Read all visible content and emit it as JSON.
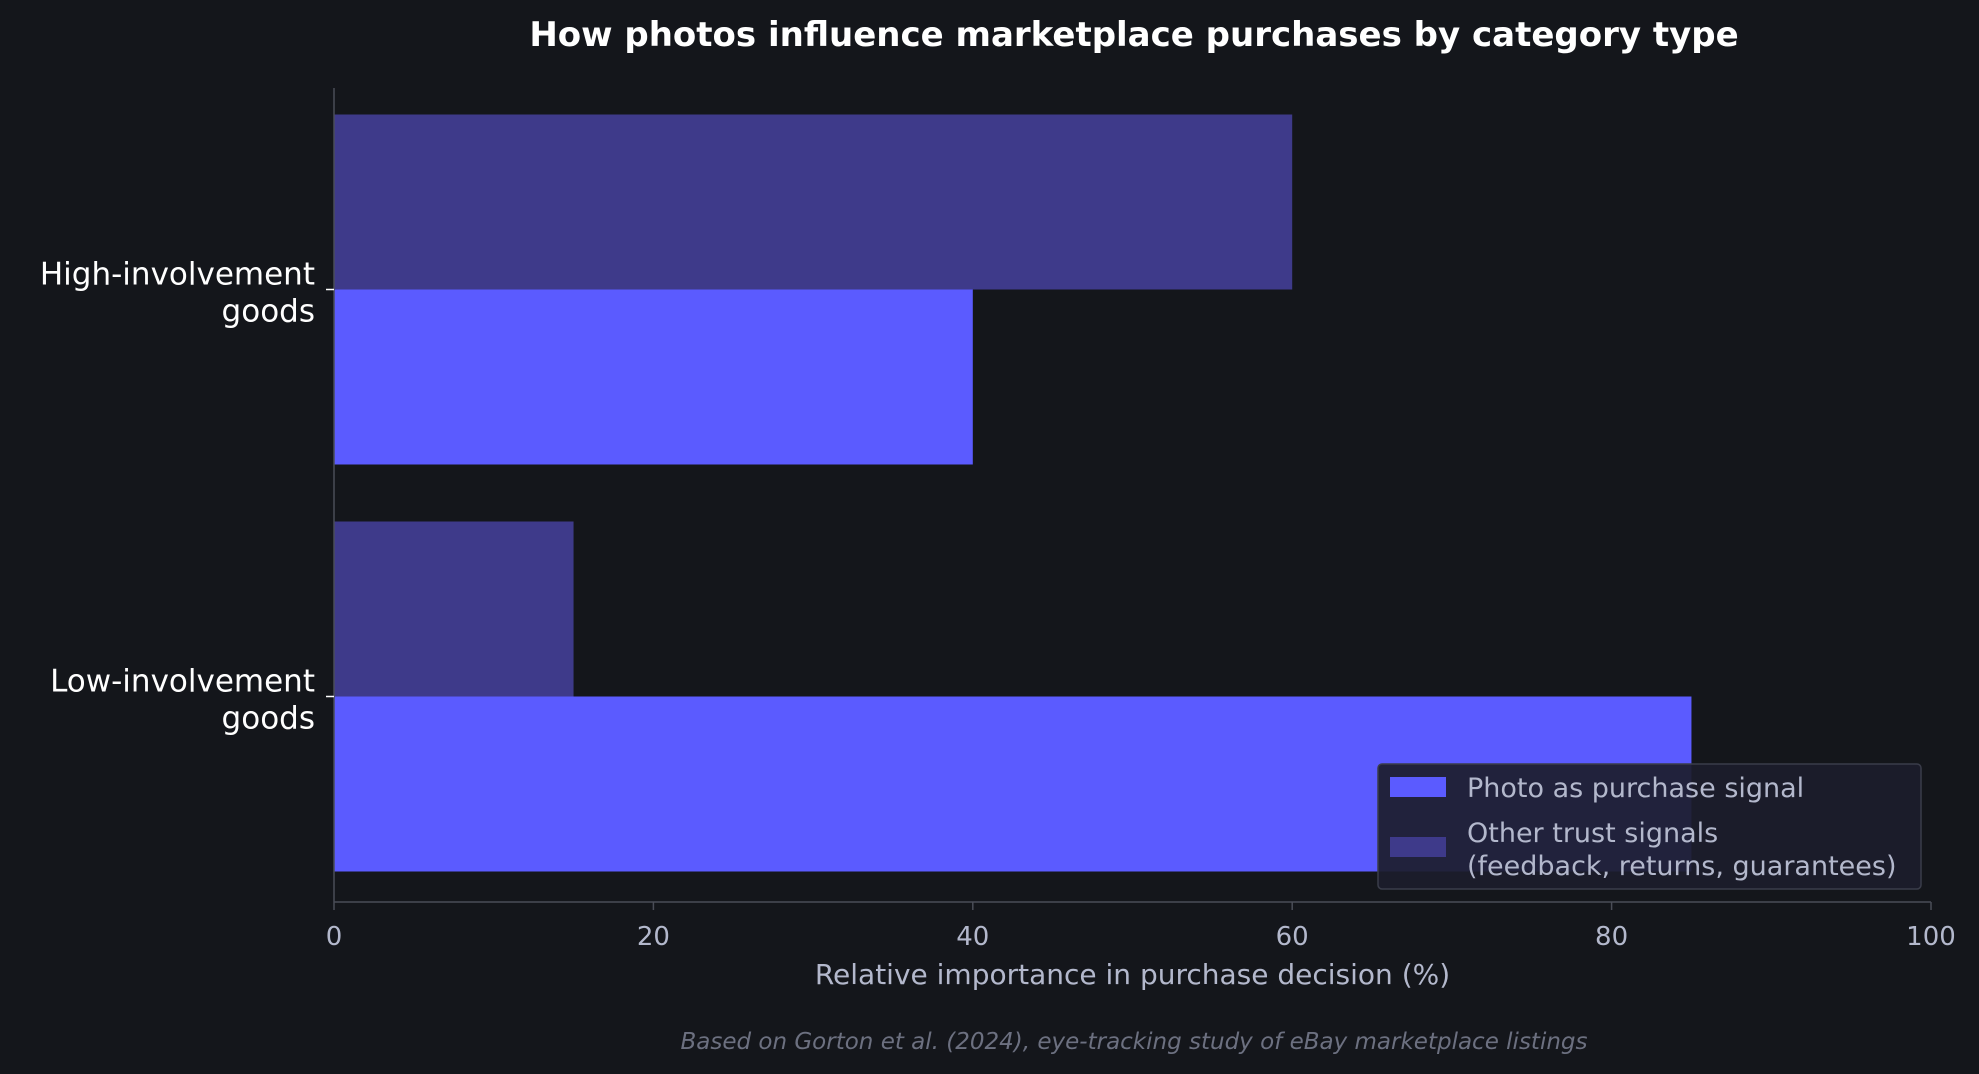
{
  "colors": {
    "background": "#14161b",
    "photo_series": "#5b5bff",
    "other_series": "#3e3a8a",
    "axis": "#4a4d57",
    "text_primary": "#ffffff",
    "text_secondary": "#b3b8cc",
    "footnote": "#6c7080",
    "legend_bg": "#1c1d2b"
  },
  "footnote": "Based on Gorton et al. (2024), eye-tracking study of eBay marketplace listings",
  "chart_data": {
    "type": "bar",
    "orientation": "horizontal",
    "title": "How photos influence marketplace purchases by category type",
    "xlabel": "Relative importance in purchase decision (%)",
    "ylabel": "",
    "xlim": [
      0,
      100
    ],
    "xticks": [
      0,
      20,
      40,
      60,
      80,
      100
    ],
    "categories": [
      [
        "High-involvement",
        "goods"
      ],
      [
        "Low-involvement",
        "goods"
      ]
    ],
    "series": [
      {
        "name": "Photo as purchase signal",
        "values": [
          40,
          85
        ],
        "color": "#5b5bff"
      },
      {
        "name": "Other trust signals\n(feedback, returns, guarantees)",
        "values": [
          60,
          15
        ],
        "color": "#3e3a8a"
      }
    ],
    "legend_position": "lower-right",
    "grid": false
  }
}
